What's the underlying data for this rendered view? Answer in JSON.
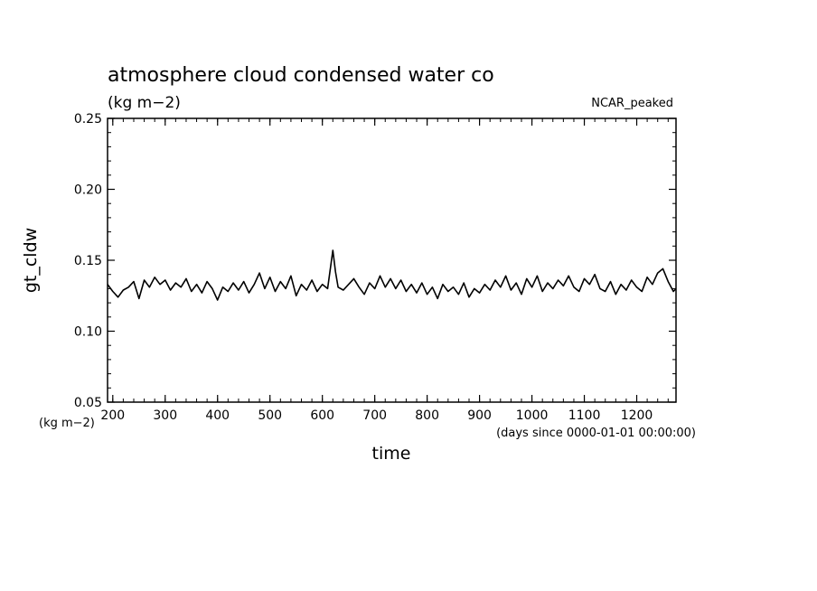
{
  "chart_data": {
    "type": "line",
    "title": "atmosphere cloud condensed water co",
    "subtitle": "(kg m−2)",
    "run_label": "NCAR_peaked",
    "xlabel": "time",
    "x_units": "(days since 0000-01-01 00:00:00)",
    "ylabel": "gt_cldw",
    "y_units": "(kg m−2)",
    "xlim": [
      190,
      1275
    ],
    "ylim": [
      0.05,
      0.25
    ],
    "x_ticks": [
      200,
      300,
      400,
      500,
      600,
      700,
      800,
      900,
      1000,
      1100,
      1200
    ],
    "x_tick_labels": [
      "200",
      "300",
      "400",
      "500",
      "600",
      "700",
      "800",
      "900",
      "1000",
      "1100",
      "1200"
    ],
    "y_ticks": [
      0.05,
      0.1,
      0.15,
      0.2,
      0.25
    ],
    "y_tick_labels": [
      "0.05",
      "0.10",
      "0.15",
      "0.20",
      "0.25"
    ],
    "grid": false,
    "series": [
      {
        "x": [
          190,
          200,
          210,
          220,
          230,
          240,
          250,
          260,
          270,
          280,
          290,
          300,
          310,
          320,
          330,
          340,
          350,
          360,
          370,
          380,
          390,
          400,
          410,
          420,
          430,
          440,
          450,
          460,
          470,
          480,
          490,
          500,
          510,
          520,
          530,
          540,
          550,
          560,
          570,
          580,
          590,
          600,
          610,
          620,
          625,
          630,
          640,
          650,
          660,
          670,
          680,
          690,
          700,
          710,
          720,
          730,
          740,
          750,
          760,
          770,
          780,
          790,
          800,
          810,
          820,
          830,
          840,
          850,
          860,
          870,
          880,
          890,
          900,
          910,
          920,
          930,
          940,
          950,
          960,
          970,
          980,
          990,
          1000,
          1010,
          1020,
          1030,
          1040,
          1050,
          1060,
          1070,
          1080,
          1090,
          1100,
          1110,
          1120,
          1130,
          1140,
          1150,
          1160,
          1170,
          1180,
          1190,
          1200,
          1210,
          1220,
          1230,
          1240,
          1250,
          1260,
          1270,
          1275
        ],
        "y": [
          0.133,
          0.128,
          0.124,
          0.129,
          0.131,
          0.135,
          0.123,
          0.136,
          0.131,
          0.138,
          0.133,
          0.136,
          0.129,
          0.134,
          0.131,
          0.137,
          0.128,
          0.133,
          0.127,
          0.135,
          0.13,
          0.122,
          0.131,
          0.128,
          0.134,
          0.129,
          0.135,
          0.127,
          0.133,
          0.141,
          0.13,
          0.138,
          0.128,
          0.135,
          0.13,
          0.139,
          0.125,
          0.133,
          0.129,
          0.136,
          0.128,
          0.133,
          0.13,
          0.157,
          0.142,
          0.131,
          0.129,
          0.133,
          0.137,
          0.131,
          0.126,
          0.134,
          0.13,
          0.139,
          0.131,
          0.137,
          0.13,
          0.136,
          0.128,
          0.133,
          0.127,
          0.134,
          0.126,
          0.131,
          0.123,
          0.133,
          0.128,
          0.131,
          0.126,
          0.134,
          0.124,
          0.13,
          0.127,
          0.133,
          0.129,
          0.136,
          0.131,
          0.139,
          0.129,
          0.134,
          0.126,
          0.137,
          0.131,
          0.139,
          0.128,
          0.134,
          0.13,
          0.136,
          0.132,
          0.139,
          0.131,
          0.128,
          0.137,
          0.133,
          0.14,
          0.13,
          0.128,
          0.135,
          0.126,
          0.133,
          0.129,
          0.136,
          0.131,
          0.128,
          0.138,
          0.133,
          0.141,
          0.144,
          0.135,
          0.128,
          0.13
        ]
      }
    ]
  }
}
